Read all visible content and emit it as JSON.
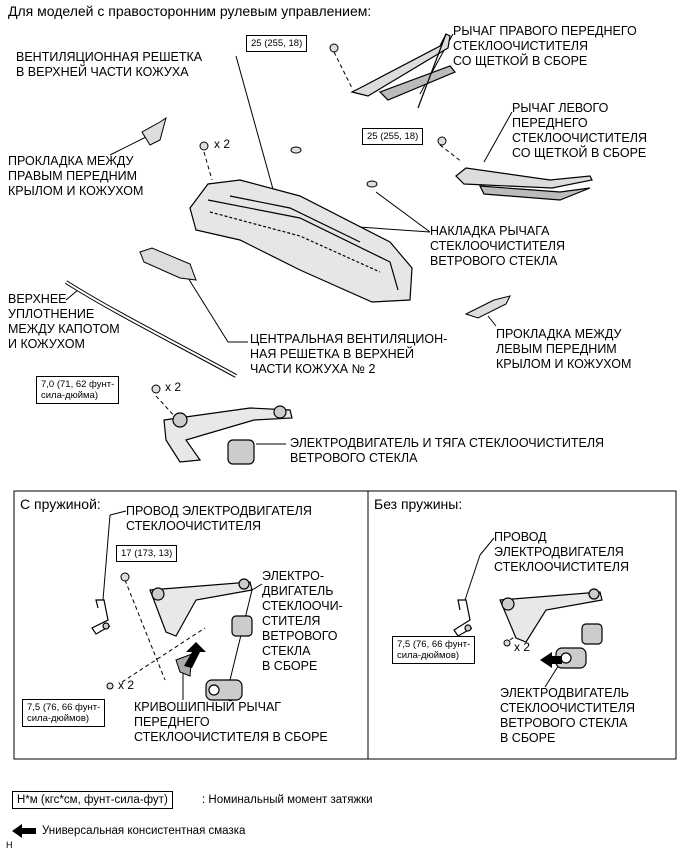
{
  "header": "Для моделей с правосторонним рулевым управлением:",
  "labels": {
    "right_wiper": "РЫЧАГ ПРАВОГО ПЕРЕДНЕГО\nСТЕКЛООЧИСТИТЕЛЯ\nСО ЩЕТКОЙ В СБОРЕ",
    "left_wiper": "РЫЧАГ ЛЕВОГО\nПЕРЕДНЕГО\nСТЕКЛООЧИСТИТЕЛЯ\nСО ЩЕТКОЙ В СБОРЕ",
    "cowl_top_vent": "ВЕНТИЛЯЦИОННАЯ РЕШЕТКА\nВ ВЕРХНЕЙ ЧАСТИ КОЖУХА",
    "right_seal": "ПРОКЛАДКА МЕЖДУ\nПРАВЫМ ПЕРЕДНИМ\nКРЫЛОМ И КОЖУХОМ",
    "pivot_cover": "НАКЛАДКА РЫЧАГА\nСТЕКЛООЧИСТИТЕЛЯ\nВЕТРОВОГО СТЕКЛА",
    "hood_seal": "ВЕРХНЕЕ\nУПЛОТНЕНИЕ\nМЕЖДУ КАПОТОМ\nИ КОЖУХОМ",
    "center_vent": "ЦЕНТРАЛЬНАЯ ВЕНТИЛЯЦИОН-\nНАЯ РЕШЕТКА В ВЕРХНЕЙ\nЧАСТИ КОЖУХА № 2",
    "left_seal": "ПРОКЛАДКА МЕЖДУ\nЛЕВЫМ ПЕРЕДНИМ\nКРЫЛОМ И КОЖУХОМ",
    "motor_link": "ЭЛЕКТРОДВИГАТЕЛЬ И ТЯГА СТЕКЛООЧИСТИТЕЛЯ\nВЕТРОВОГО СТЕКЛА"
  },
  "torques": {
    "t1": "25 (255, 18)",
    "t2": "25 (255, 18)",
    "t3": "7,0 (71, 62 фунт-\nсила-дюйма)",
    "t4": "17 (173, 13)",
    "t5": "7,5 (76, 66 фунт-\nсила-дюймов)",
    "t6": "7,5 (76, 66 фунт-\nсила-дюймов)"
  },
  "qty": {
    "q1": "x 2",
    "q2": "x 2",
    "q3": "x 2",
    "q4": "x 2"
  },
  "panel_left": {
    "title": "С пружиной:",
    "wire": "ПРОВОД ЭЛЕКТРОДВИГАТЕЛЯ\nСТЕКЛООЧИСТИТЕЛЯ",
    "motor": "ЭЛЕКТРО-\nДВИГАТЕЛЬ\nСТЕКЛООЧИ-\nСТИТЕЛЯ\nВЕТРОВОГО\nСТЕКЛА\nВ СБОРЕ",
    "crank": "КРИВОШИПНЫЙ РЫЧАГ\nПЕРЕДНЕГО\nСТЕКЛООЧИСТИТЕЛЯ В СБОРЕ"
  },
  "panel_right": {
    "title": "Без пружины:",
    "wire": "ПРОВОД\nЭЛЕКТРОДВИГАТЕЛЯ\nСТЕКЛООЧИСТИТЕЛЯ",
    "motor": "ЭЛЕКТРОДВИГАТЕЛЬ\nСТЕКЛООЧИСТИТЕЛЯ\nВЕТРОВОГО СТЕКЛА\nВ СБОРЕ"
  },
  "legend": {
    "unit": "Н*м (кгс*см, фунт-сила-фут)",
    "unit_desc": ": Номинальный момент затяжки",
    "grease": "Универсальная консистентная смазка",
    "code": "H"
  }
}
